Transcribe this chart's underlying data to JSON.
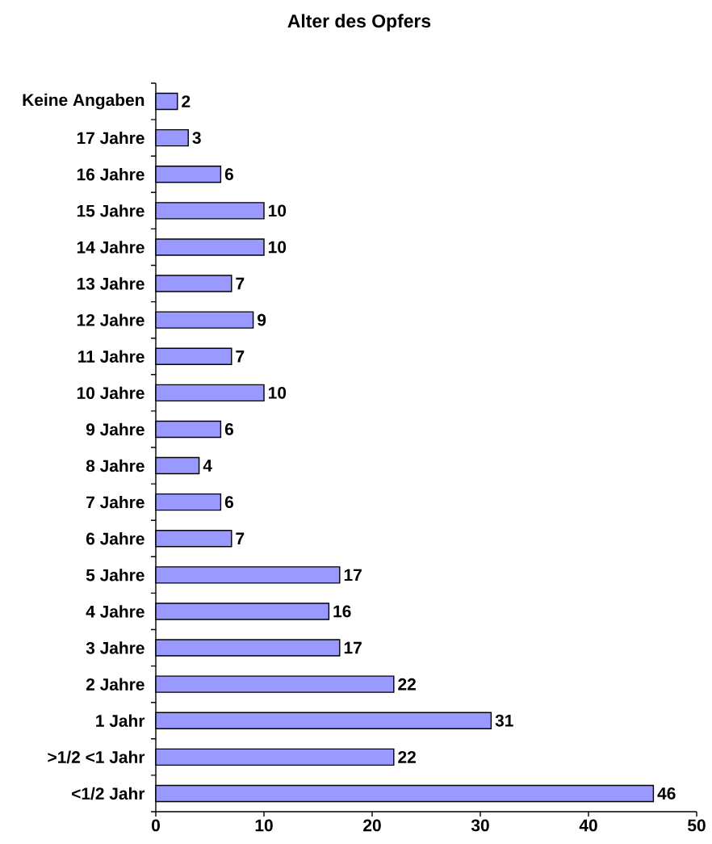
{
  "chart_data": {
    "type": "bar",
    "orientation": "horizontal",
    "title": "Alter des Opfers",
    "categories": [
      "Keine Angaben",
      "17 Jahre",
      "16 Jahre",
      "15 Jahre",
      "14 Jahre",
      "13 Jahre",
      "12 Jahre",
      "11 Jahre",
      "10 Jahre",
      "9 Jahre",
      "8 Jahre",
      "7 Jahre",
      "6 Jahre",
      "5 Jahre",
      "4 Jahre",
      "3 Jahre",
      "2 Jahre",
      "1 Jahr",
      ">1/2 <1 Jahr",
      "<1/2 Jahr"
    ],
    "values": [
      2,
      3,
      6,
      10,
      10,
      7,
      9,
      7,
      10,
      6,
      4,
      6,
      7,
      17,
      16,
      17,
      22,
      31,
      22,
      46
    ],
    "color": "#9999ff",
    "xlim": [
      0,
      50
    ],
    "xticks": [
      0,
      10,
      20,
      30,
      40,
      50
    ],
    "data_labels": true
  }
}
